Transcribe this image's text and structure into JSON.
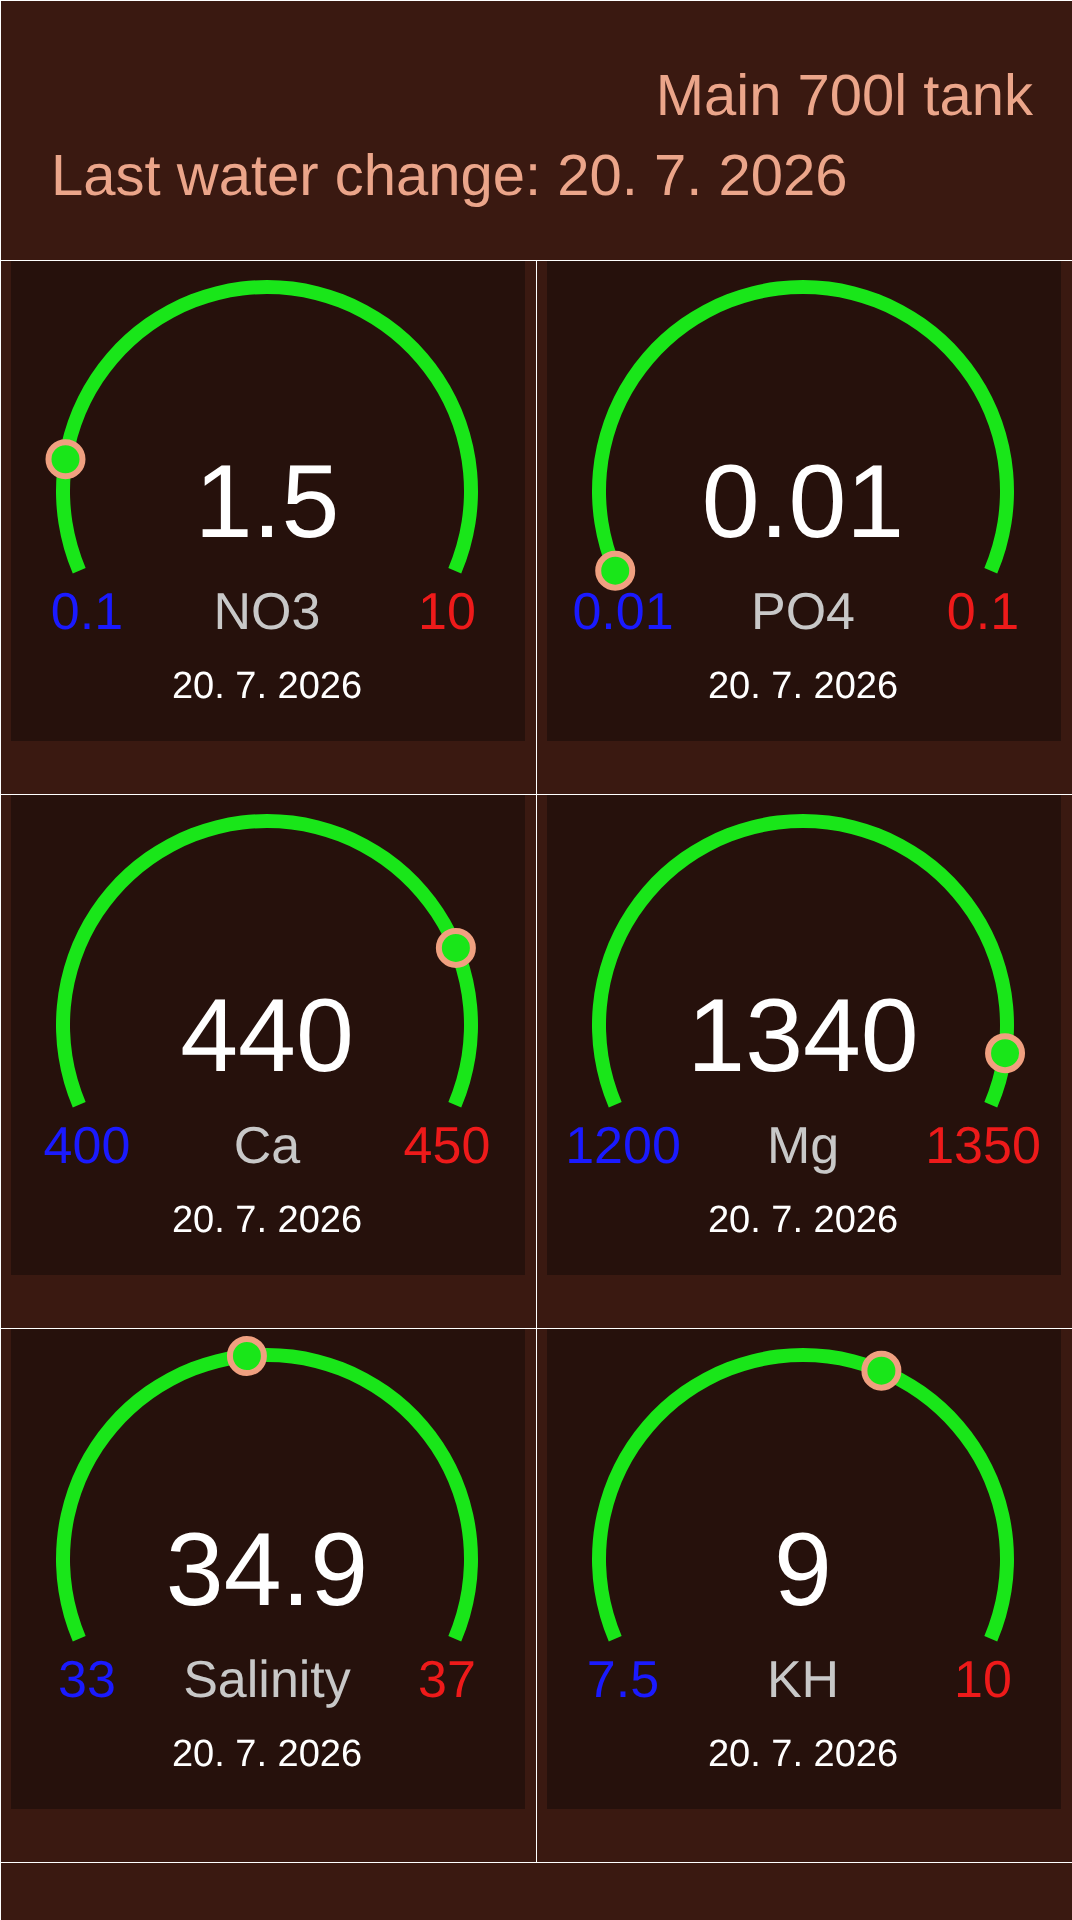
{
  "chart_data": [
    {
      "type": "other",
      "title": "Main 700l tank",
      "subtitle": "Last water change: 20. 7. 2026",
      "color": "#eba58a"
    },
    {
      "type": "other",
      "title": "NO3",
      "values": [
        1.5
      ],
      "data_labels": true,
      "annotations": [
        "0.1",
        "10",
        "20. 7. 2026"
      ]
    },
    {
      "type": "other",
      "title": "PO4",
      "values": [
        0.01
      ],
      "data_labels": true,
      "annotations": [
        "0.01",
        "0.1",
        "20. 7. 2026"
      ]
    },
    {
      "type": "other",
      "title": "Ca",
      "values": [
        440
      ],
      "data_labels": true,
      "annotations": [
        "400",
        "450",
        "20. 7. 2026"
      ]
    },
    {
      "type": "other",
      "title": "Mg",
      "values": [
        1340
      ],
      "data_labels": true,
      "annotations": [
        "1200",
        "1350",
        "20. 7. 2026"
      ]
    },
    {
      "type": "other",
      "title": "Salinity",
      "values": [
        34.9
      ],
      "data_labels": true,
      "annotations": [
        "33",
        "37",
        "20. 7. 2026"
      ]
    },
    {
      "type": "other",
      "title": "KH",
      "values": [
        9
      ],
      "data_labels": true,
      "annotations": [
        "7.5",
        "10",
        "20. 7. 2026"
      ]
    }
  ]
}
